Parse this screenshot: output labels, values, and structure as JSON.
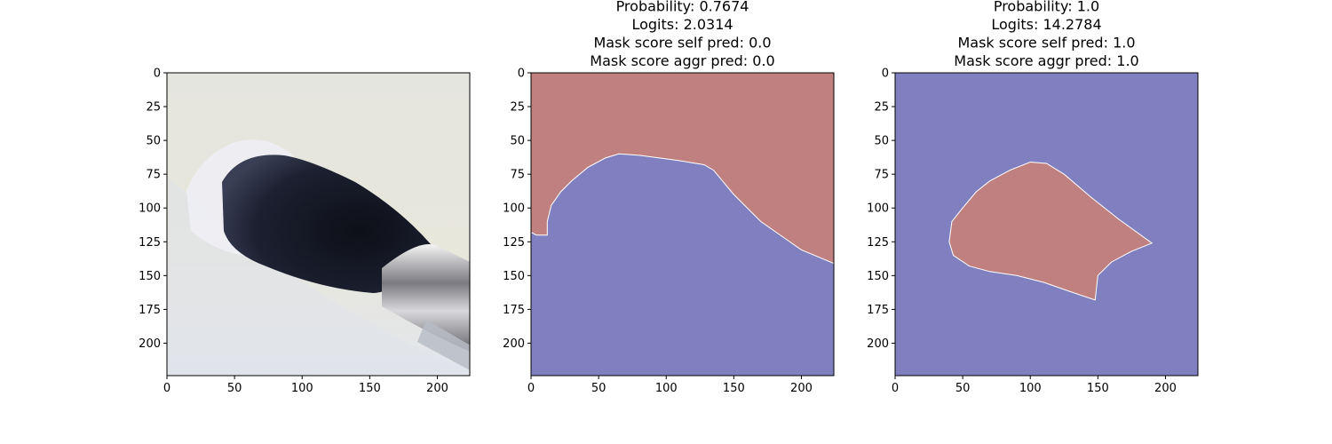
{
  "chart_data": [
    {
      "type": "image",
      "title_lines": [],
      "image": "makeup-brush-photo",
      "xlim": [
        0,
        224
      ],
      "ylim": [
        224,
        0
      ],
      "xticks": [
        0,
        50,
        100,
        150,
        200
      ],
      "yticks": [
        0,
        25,
        50,
        75,
        100,
        125,
        150,
        175,
        200
      ]
    },
    {
      "type": "heatmap",
      "title_lines": [
        "Probability: 0.7674",
        "Logits: 2.0314",
        "Mask score self pred: 0.0",
        "Mask score aggr pred: 0.0"
      ],
      "xlim": [
        0,
        224
      ],
      "ylim": [
        224,
        0
      ],
      "xticks": [
        0,
        50,
        100,
        150,
        200
      ],
      "yticks": [
        0,
        25,
        50,
        75,
        100,
        125,
        150,
        175,
        200
      ],
      "background_color": "#8080c0",
      "mask_color": "#c08080",
      "mask_boundary": [
        [
          0,
          0
        ],
        [
          224,
          0
        ],
        [
          224,
          141
        ],
        [
          200,
          131
        ],
        [
          170,
          110
        ],
        [
          150,
          90
        ],
        [
          135,
          72
        ],
        [
          128,
          68
        ],
        [
          110,
          65
        ],
        [
          95,
          63
        ],
        [
          80,
          61
        ],
        [
          65,
          60
        ],
        [
          55,
          63
        ],
        [
          42,
          70
        ],
        [
          30,
          80
        ],
        [
          22,
          88
        ],
        [
          15,
          98
        ],
        [
          12,
          110
        ],
        [
          12,
          120
        ],
        [
          4,
          120
        ],
        [
          0,
          118
        ]
      ]
    },
    {
      "type": "heatmap",
      "title_lines": [
        "Probability: 1.0",
        "Logits: 14.2784",
        "Mask score self pred: 1.0",
        "Mask score aggr pred: 1.0"
      ],
      "xlim": [
        0,
        224
      ],
      "ylim": [
        224,
        0
      ],
      "xticks": [
        0,
        50,
        100,
        150,
        200
      ],
      "yticks": [
        0,
        25,
        50,
        75,
        100,
        125,
        150,
        175,
        200
      ],
      "background_color": "#8080c0",
      "mask_color": "#c08080",
      "mask_boundary": [
        [
          100,
          66
        ],
        [
          112,
          67
        ],
        [
          125,
          75
        ],
        [
          145,
          92
        ],
        [
          165,
          108
        ],
        [
          190,
          126
        ],
        [
          175,
          132
        ],
        [
          160,
          140
        ],
        [
          150,
          150
        ],
        [
          148,
          168
        ],
        [
          130,
          162
        ],
        [
          110,
          155
        ],
        [
          90,
          150
        ],
        [
          70,
          147
        ],
        [
          55,
          143
        ],
        [
          43,
          135
        ],
        [
          40,
          125
        ],
        [
          42,
          110
        ],
        [
          50,
          100
        ],
        [
          60,
          88
        ],
        [
          70,
          80
        ],
        [
          85,
          72
        ]
      ]
    }
  ]
}
